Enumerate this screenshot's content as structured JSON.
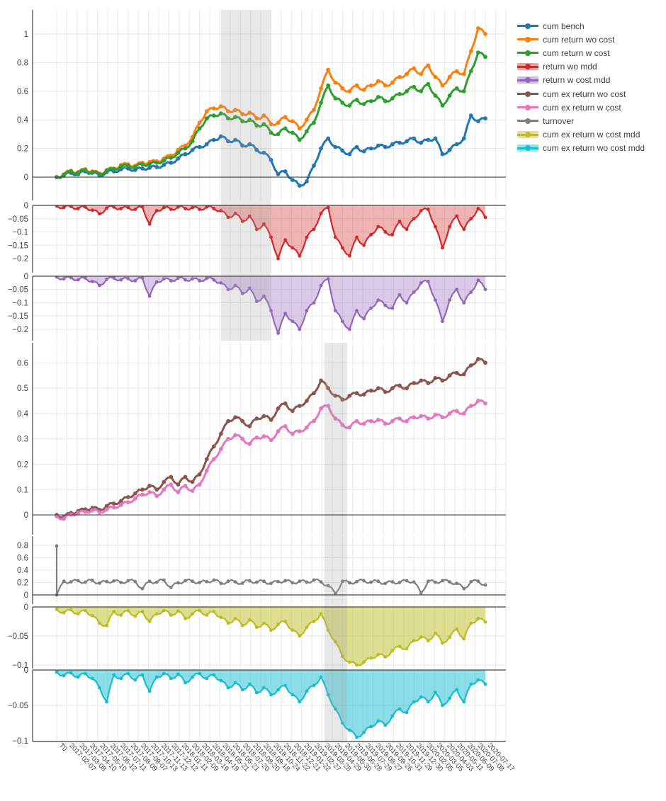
{
  "legend": {
    "entries": [
      {
        "label": "cum bench",
        "color": "#1f77b4",
        "filled": false
      },
      {
        "label": "cum return wo cost",
        "color": "#ff7f0e",
        "filled": false
      },
      {
        "label": "cum return w cost",
        "color": "#2ca02c",
        "filled": false
      },
      {
        "label": "return wo mdd",
        "color": "#d62728",
        "filled": true
      },
      {
        "label": "return w cost mdd",
        "color": "#9467bd",
        "filled": true
      },
      {
        "label": "cum ex return wo cost",
        "color": "#8c564b",
        "filled": false
      },
      {
        "label": "cum ex return w cost",
        "color": "#e377c2",
        "filled": false
      },
      {
        "label": "turnover",
        "color": "#7f7f7f",
        "filled": false
      },
      {
        "label": "cum ex return w cost mdd",
        "color": "#bcbd22",
        "filled": true
      },
      {
        "label": "cum ex return wo cost mdd",
        "color": "#17becf",
        "filled": true
      }
    ]
  },
  "chart_data": {
    "type": "line",
    "title": "",
    "grid": true,
    "legend_position": "right",
    "x_tick_labels": [
      "T0",
      "2017-02-07",
      "2017-03-08",
      "2017-04-10",
      "2017-05-10",
      "2017-06-12",
      "2017-07-11",
      "2017-08-09",
      "2017-09-07",
      "2017-10-13",
      "2017-11-13",
      "2017-12-12",
      "2018-01-11",
      "2018-02-09",
      "2018-03-19",
      "2018-04-19",
      "2018-05-21",
      "2018-06-21",
      "2018-07-20",
      "2018-08-20",
      "2018-09-18",
      "2018-10-24",
      "2018-11-22",
      "2018-12-21",
      "2019-01-22",
      "2019-02-27",
      "2019-03-28",
      "2019-04-29",
      "2019-05-30",
      "2019-06-28",
      "2019-07-29",
      "2019-08-27",
      "2019-09-26",
      "2019-10-31",
      "2019-11-29",
      "2019-12-30",
      "2020-02-05",
      "2020-03-05",
      "2020-04-03",
      "2020-05-11",
      "2020-06-09",
      "2020-07-08",
      "2020-07-17"
    ],
    "bands": [
      {
        "x0": 0.3835,
        "x1": 0.4992,
        "panels": [
          0,
          1,
          2
        ]
      },
      {
        "x0": 0.6248,
        "x1": 0.6777,
        "panels": [
          3,
          4,
          5,
          6
        ]
      }
    ],
    "panels": [
      {
        "name": "cumulative-return",
        "ylim": [
          -0.163,
          1.168
        ],
        "yticks": [
          0,
          0.2,
          0.4,
          0.6,
          0.8,
          1
        ],
        "ytick_labels": [
          "0",
          "0.2",
          "0.4",
          "0.6",
          "0.8",
          "1"
        ],
        "series": [
          "cum bench",
          "cum return wo cost",
          "cum return w cost"
        ]
      },
      {
        "name": "return-wo-mdd",
        "ylim": [
          -0.2533,
          0
        ],
        "yticks": [
          0,
          -0.05,
          -0.1,
          -0.15,
          -0.2
        ],
        "ytick_labels": [
          "0",
          "−0.05",
          "−0.1",
          "−0.15",
          "−0.2"
        ],
        "series": [
          "return wo mdd"
        ]
      },
      {
        "name": "return-w-cost-mdd",
        "ylim": [
          -0.2427,
          0
        ],
        "yticks": [
          0,
          -0.05,
          -0.1,
          -0.15,
          -0.2
        ],
        "ytick_labels": [
          "0",
          "−0.05",
          "−0.1",
          "−0.15",
          "−0.2"
        ],
        "series": [
          "return w cost mdd"
        ]
      },
      {
        "name": "cumulative-excess-return",
        "ylim": [
          -0.078,
          0.679
        ],
        "yticks": [
          0,
          0.1,
          0.2,
          0.3,
          0.4,
          0.5,
          0.6
        ],
        "ytick_labels": [
          "0",
          "0.1",
          "0.2",
          "0.3",
          "0.4",
          "0.5",
          "0.6"
        ],
        "series": [
          "cum ex return wo cost",
          "cum ex return w cost"
        ]
      },
      {
        "name": "turnover",
        "ylim": [
          -0.149,
          0.949
        ],
        "yticks": [
          0,
          0.2,
          0.4,
          0.6,
          0.8
        ],
        "ytick_labels": [
          "0",
          "0.2",
          "0.4",
          "0.6",
          "0.8"
        ],
        "series": [
          "turnover"
        ]
      },
      {
        "name": "cum-ex-return-w-cost-mdd",
        "ylim": [
          -0.106,
          0
        ],
        "yticks": [
          0,
          -0.05,
          -0.1
        ],
        "ytick_labels": [
          "0",
          "−0.05",
          "−0.1"
        ],
        "series": [
          "cum ex return w cost mdd"
        ]
      },
      {
        "name": "cum-ex-return-wo-cost-mdd",
        "ylim": [
          -0.101,
          0
        ],
        "yticks": [
          0,
          -0.05,
          -0.1
        ],
        "ytick_labels": [
          "0",
          "−0.05",
          "−0.1"
        ],
        "series": [
          "cum ex return wo cost mdd"
        ]
      }
    ],
    "series": {
      "cum bench": {
        "color": "#1f77b4",
        "fill": false,
        "values": [
          0,
          0.01,
          0.03,
          0.02,
          0.04,
          0.03,
          0.01,
          0.035,
          0.04,
          0.055,
          0.06,
          0.05,
          0.06,
          0.065,
          0.07,
          0.085,
          0.1,
          0.13,
          0.16,
          0.19,
          0.21,
          0.23,
          0.26,
          0.285,
          0.25,
          0.26,
          0.22,
          0.23,
          0.19,
          0.17,
          0.12,
          0.02,
          0.04,
          -0.02,
          -0.06,
          -0.03,
          0.08,
          0.2,
          0.27,
          0.21,
          0.185,
          0.16,
          0.21,
          0.18,
          0.2,
          0.22,
          0.21,
          0.23,
          0.24,
          0.25,
          0.27,
          0.24,
          0.26,
          0.27,
          0.16,
          0.19,
          0.23,
          0.27,
          0.43,
          0.39,
          0.41
        ]
      },
      "cum return wo cost": {
        "color": "#ff7f0e",
        "fill": false,
        "values": [
          0,
          0.02,
          0.045,
          0.035,
          0.055,
          0.04,
          0.025,
          0.05,
          0.06,
          0.085,
          0.09,
          0.08,
          0.1,
          0.105,
          0.11,
          0.13,
          0.15,
          0.19,
          0.22,
          0.28,
          0.38,
          0.46,
          0.48,
          0.495,
          0.46,
          0.47,
          0.44,
          0.45,
          0.41,
          0.43,
          0.37,
          0.38,
          0.42,
          0.39,
          0.34,
          0.4,
          0.47,
          0.62,
          0.75,
          0.66,
          0.62,
          0.6,
          0.64,
          0.61,
          0.64,
          0.67,
          0.64,
          0.66,
          0.7,
          0.72,
          0.76,
          0.72,
          0.78,
          0.7,
          0.64,
          0.7,
          0.74,
          0.72,
          0.88,
          1.04,
          1.0
        ]
      },
      "cum return w cost": {
        "color": "#2ca02c",
        "fill": false,
        "values": [
          0,
          0.015,
          0.04,
          0.03,
          0.05,
          0.035,
          0.02,
          0.045,
          0.055,
          0.075,
          0.08,
          0.07,
          0.09,
          0.09,
          0.1,
          0.115,
          0.135,
          0.17,
          0.2,
          0.25,
          0.34,
          0.41,
          0.43,
          0.445,
          0.41,
          0.42,
          0.39,
          0.4,
          0.36,
          0.37,
          0.31,
          0.3,
          0.34,
          0.31,
          0.26,
          0.32,
          0.38,
          0.52,
          0.64,
          0.55,
          0.52,
          0.5,
          0.54,
          0.51,
          0.53,
          0.56,
          0.53,
          0.55,
          0.58,
          0.6,
          0.63,
          0.6,
          0.65,
          0.57,
          0.5,
          0.57,
          0.62,
          0.6,
          0.74,
          0.87,
          0.84
        ]
      },
      "return wo mdd": {
        "color": "#d62728",
        "fill": true,
        "values": [
          -0.002,
          -0.008,
          -0.004,
          -0.012,
          -0.006,
          -0.018,
          -0.032,
          -0.01,
          -0.006,
          -0.012,
          -0.008,
          -0.015,
          -0.006,
          -0.07,
          -0.02,
          -0.008,
          -0.015,
          -0.006,
          -0.012,
          -0.008,
          -0.015,
          -0.006,
          -0.012,
          -0.02,
          -0.045,
          -0.03,
          -0.06,
          -0.04,
          -0.09,
          -0.07,
          -0.12,
          -0.2,
          -0.13,
          -0.16,
          -0.19,
          -0.12,
          -0.09,
          -0.03,
          -0.008,
          -0.12,
          -0.16,
          -0.19,
          -0.12,
          -0.15,
          -0.11,
          -0.08,
          -0.1,
          -0.11,
          -0.06,
          -0.09,
          -0.05,
          -0.02,
          -0.015,
          -0.08,
          -0.16,
          -0.08,
          -0.04,
          -0.09,
          -0.05,
          -0.012,
          -0.045
        ]
      },
      "return w cost mdd": {
        "color": "#9467bd",
        "fill": true,
        "values": [
          -0.003,
          -0.01,
          -0.005,
          -0.014,
          -0.007,
          -0.02,
          -0.035,
          -0.012,
          -0.007,
          -0.014,
          -0.009,
          -0.017,
          -0.007,
          -0.075,
          -0.022,
          -0.01,
          -0.017,
          -0.007,
          -0.014,
          -0.01,
          -0.017,
          -0.008,
          -0.014,
          -0.025,
          -0.05,
          -0.035,
          -0.065,
          -0.045,
          -0.095,
          -0.075,
          -0.13,
          -0.215,
          -0.14,
          -0.17,
          -0.2,
          -0.13,
          -0.1,
          -0.035,
          -0.01,
          -0.13,
          -0.17,
          -0.2,
          -0.13,
          -0.16,
          -0.12,
          -0.09,
          -0.11,
          -0.12,
          -0.07,
          -0.1,
          -0.06,
          -0.025,
          -0.02,
          -0.09,
          -0.17,
          -0.09,
          -0.05,
          -0.1,
          -0.06,
          -0.015,
          -0.05
        ]
      },
      "cum ex return wo cost": {
        "color": "#8c564b",
        "fill": false,
        "values": [
          0,
          -0.008,
          0.008,
          0.015,
          0.022,
          0.028,
          0.02,
          0.035,
          0.045,
          0.055,
          0.07,
          0.085,
          0.1,
          0.115,
          0.1,
          0.13,
          0.15,
          0.12,
          0.15,
          0.13,
          0.16,
          0.22,
          0.27,
          0.32,
          0.37,
          0.385,
          0.37,
          0.35,
          0.38,
          0.39,
          0.375,
          0.42,
          0.44,
          0.41,
          0.43,
          0.45,
          0.48,
          0.53,
          0.5,
          0.47,
          0.455,
          0.47,
          0.48,
          0.475,
          0.49,
          0.5,
          0.485,
          0.5,
          0.51,
          0.5,
          0.52,
          0.53,
          0.52,
          0.54,
          0.53,
          0.55,
          0.56,
          0.555,
          0.59,
          0.615,
          0.6
        ]
      },
      "cum ex return w cost": {
        "color": "#e377c2",
        "fill": false,
        "values": [
          -0.005,
          -0.015,
          0.002,
          0.008,
          0.012,
          0.018,
          0.01,
          0.022,
          0.03,
          0.04,
          0.05,
          0.065,
          0.08,
          0.09,
          0.075,
          0.1,
          0.12,
          0.09,
          0.115,
          0.095,
          0.12,
          0.175,
          0.22,
          0.26,
          0.3,
          0.315,
          0.3,
          0.28,
          0.305,
          0.31,
          0.295,
          0.33,
          0.35,
          0.32,
          0.33,
          0.345,
          0.37,
          0.42,
          0.43,
          0.38,
          0.355,
          0.345,
          0.37,
          0.36,
          0.37,
          0.375,
          0.36,
          0.37,
          0.38,
          0.37,
          0.385,
          0.39,
          0.38,
          0.395,
          0.385,
          0.4,
          0.41,
          0.4,
          0.43,
          0.45,
          0.44
        ]
      },
      "turnover": {
        "color": "#7f7f7f",
        "fill": false,
        "x": [
          0,
          0,
          0.0167,
          0.0333,
          0.05,
          0.0667,
          0.0833,
          0.1,
          0.1167,
          0.1333,
          0.15,
          0.1667,
          0.1833,
          0.2,
          0.2167,
          0.2333,
          0.25,
          0.2667,
          0.2833,
          0.3,
          0.3167,
          0.3333,
          0.35,
          0.3667,
          0.3833,
          0.4,
          0.4167,
          0.4333,
          0.45,
          0.4667,
          0.4833,
          0.5,
          0.5167,
          0.5333,
          0.55,
          0.5667,
          0.5833,
          0.6,
          0.6167,
          0.6333,
          0.65,
          0.6667,
          0.6833,
          0.7,
          0.7167,
          0.7333,
          0.75,
          0.7667,
          0.7833,
          0.8,
          0.8167,
          0.8333,
          0.85,
          0.8667,
          0.8833,
          0.9,
          0.9167,
          0.9333,
          0.95,
          0.9667,
          0.9833,
          1
        ],
        "values": [
          0.79,
          0.0,
          0.22,
          0.21,
          0.23,
          0.205,
          0.235,
          0.19,
          0.215,
          0.225,
          0.2,
          0.23,
          0.215,
          0.1,
          0.22,
          0.205,
          0.24,
          0.12,
          0.195,
          0.23,
          0.22,
          0.2,
          0.215,
          0.24,
          0.185,
          0.22,
          0.21,
          0.19,
          0.23,
          0.205,
          0.22,
          0.185,
          0.215,
          0.23,
          0.195,
          0.22,
          0.205,
          0.24,
          0.21,
          0.15,
          0.02,
          0.22,
          0.195,
          0.215,
          0.23,
          0.205,
          0.22,
          0.185,
          0.21,
          0.2,
          0.23,
          0.21,
          0.03,
          0.22,
          0.205,
          0.23,
          0.21,
          0.185,
          0.1,
          0.215,
          0.22,
          0.16
        ]
      },
      "cum ex return w cost mdd": {
        "color": "#bcbd22",
        "fill": true,
        "values": [
          -0.004,
          -0.01,
          -0.005,
          -0.012,
          -0.006,
          -0.015,
          -0.028,
          -0.032,
          -0.008,
          -0.014,
          -0.006,
          -0.016,
          -0.008,
          -0.025,
          -0.012,
          -0.006,
          -0.014,
          -0.007,
          -0.02,
          -0.012,
          -0.006,
          -0.014,
          -0.008,
          -0.018,
          -0.028,
          -0.02,
          -0.032,
          -0.022,
          -0.035,
          -0.028,
          -0.04,
          -0.03,
          -0.025,
          -0.04,
          -0.05,
          -0.035,
          -0.025,
          -0.012,
          -0.04,
          -0.06,
          -0.085,
          -0.095,
          -0.1,
          -0.095,
          -0.088,
          -0.082,
          -0.086,
          -0.075,
          -0.068,
          -0.072,
          -0.058,
          -0.052,
          -0.058,
          -0.045,
          -0.062,
          -0.052,
          -0.038,
          -0.055,
          -0.028,
          -0.02,
          -0.026
        ]
      },
      "cum ex return wo cost mdd": {
        "color": "#17becf",
        "fill": true,
        "values": [
          -0.003,
          -0.008,
          -0.004,
          -0.01,
          -0.005,
          -0.012,
          -0.025,
          -0.045,
          -0.007,
          -0.012,
          -0.005,
          -0.014,
          -0.007,
          -0.03,
          -0.01,
          -0.005,
          -0.012,
          -0.006,
          -0.018,
          -0.01,
          -0.005,
          -0.012,
          -0.007,
          -0.015,
          -0.025,
          -0.018,
          -0.028,
          -0.02,
          -0.032,
          -0.025,
          -0.035,
          -0.028,
          -0.022,
          -0.035,
          -0.045,
          -0.03,
          -0.022,
          -0.01,
          -0.035,
          -0.055,
          -0.075,
          -0.085,
          -0.095,
          -0.088,
          -0.08,
          -0.072,
          -0.078,
          -0.065,
          -0.055,
          -0.06,
          -0.045,
          -0.038,
          -0.045,
          -0.032,
          -0.05,
          -0.04,
          -0.028,
          -0.045,
          -0.02,
          -0.014,
          -0.02
        ]
      }
    },
    "colors": {
      "grid": "#e7e7e7",
      "axis": "#444444",
      "tick_text": "#444444",
      "band": "rgba(163,163,163,0.25)",
      "background": "#ffffff"
    }
  }
}
